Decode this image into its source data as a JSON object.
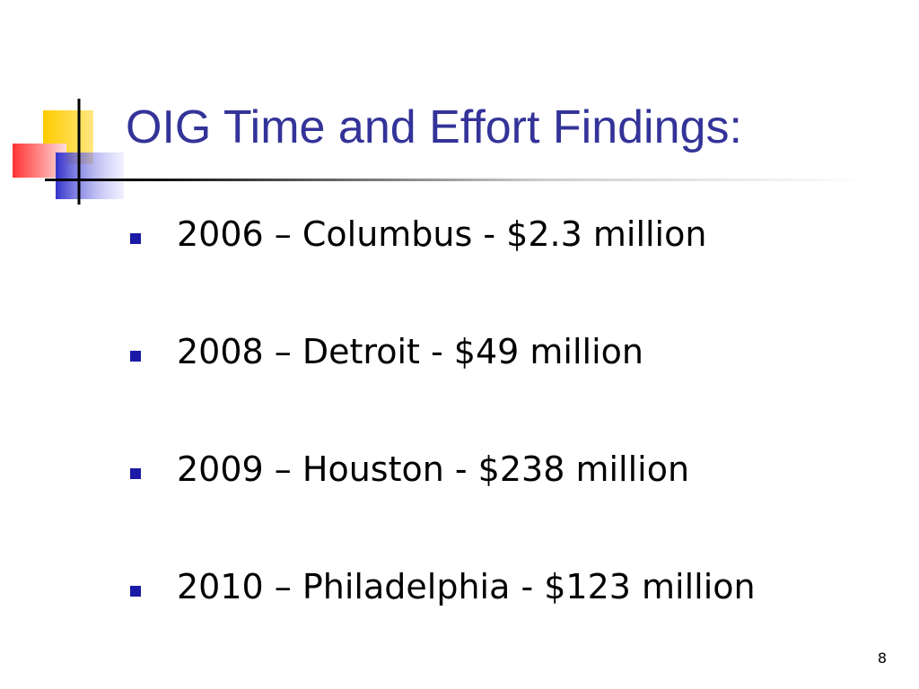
{
  "slide": {
    "title": "OIG Time and Effort Findings:",
    "bullets": [
      "2006 – Columbus - $2.3 million",
      "2008 – Detroit - $49 million",
      "2009 – Houston - $238 million",
      "2010 – Philadelphia - $123 million"
    ],
    "page_number": "8"
  }
}
